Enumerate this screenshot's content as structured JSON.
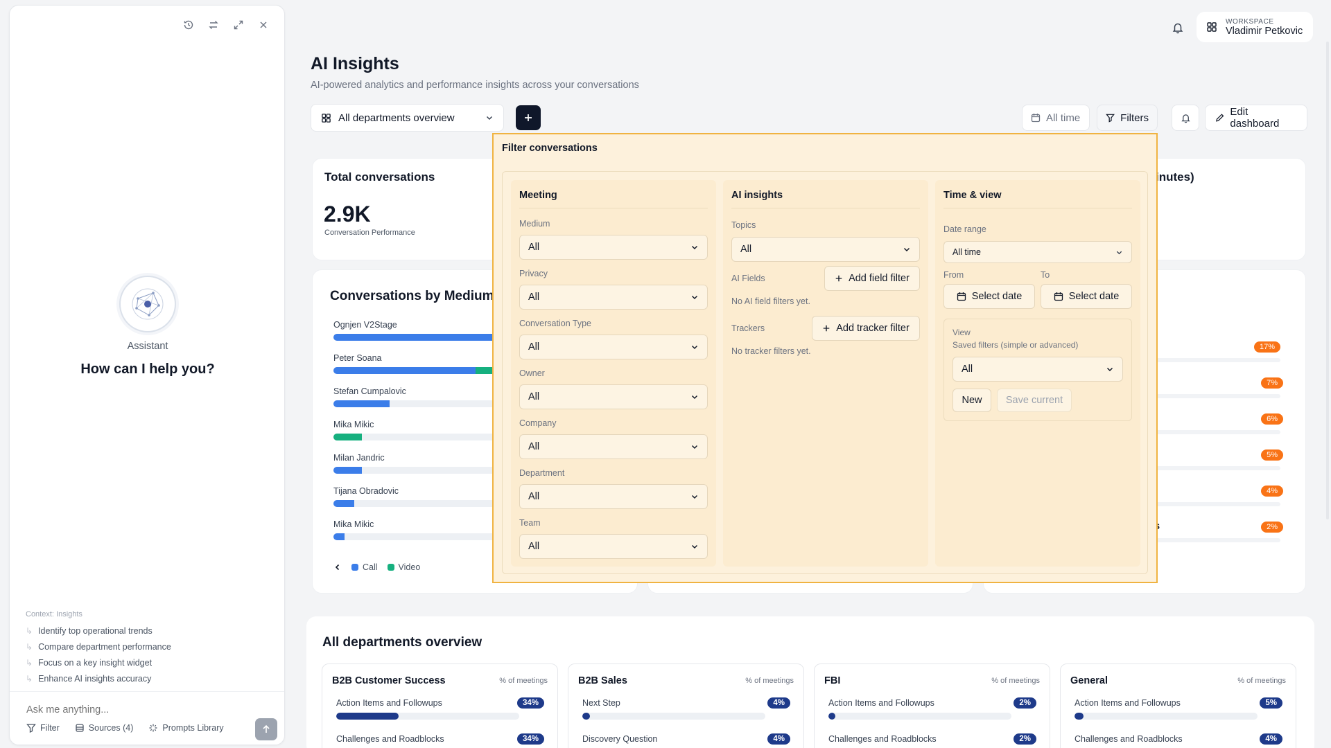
{
  "assistant": {
    "label": "Assistant",
    "heading": "How can I help you?",
    "context_label": "Context: Insights",
    "suggestions": [
      "Identify top operational trends",
      "Compare department performance",
      "Focus on a key insight widget",
      "Enhance AI insights accuracy"
    ],
    "input_placeholder": "Ask me anything...",
    "filter_label": "Filter",
    "sources_label": "Sources (4)",
    "prompts_label": "Prompts Library"
  },
  "workspace": {
    "label": "WORKSPACE",
    "user": "Vladimir Petkovic"
  },
  "page": {
    "title": "AI Insights",
    "subtitle": "AI-powered analytics and performance insights across your conversations"
  },
  "toolbar": {
    "dashboard_select": "All departments overview",
    "time_label": "All time",
    "filters_label": "Filters",
    "edit_label": "Edit dashboard"
  },
  "total_card": {
    "title": "Total conversations",
    "value": "2.9K",
    "caption": "Conversation Performance"
  },
  "right_card_title_partial": "inutes)",
  "medium_card": {
    "title": "Conversations by Medium",
    "legend": [
      "Call",
      "Video"
    ],
    "colors": {
      "call": "#3b7de9",
      "video": "#16b07f"
    },
    "rows": [
      {
        "name": "Ognjen V2Stage",
        "call": 1.0,
        "video": 0
      },
      {
        "name": "Peter Soana",
        "call": 0.76,
        "video": 0.1
      },
      {
        "name": "Stefan Cumpalovic",
        "call": 0.3,
        "video": 0
      },
      {
        "name": "Mika Mikic",
        "call": 0,
        "video": 0.15
      },
      {
        "name": "Milan Jandric",
        "call": 0.15,
        "video": 0
      },
      {
        "name": "Tijana Obradovic",
        "call": 0.11,
        "video": 0
      },
      {
        "name": "Mika Mikic",
        "call": 0.06,
        "video": 0
      }
    ]
  },
  "right_badges": [
    "17%",
    "7%",
    "6%",
    "5%",
    "4%",
    "2%"
  ],
  "right_partial_text": "s",
  "filter": {
    "title": "Filter conversations",
    "meeting": {
      "heading": "Meeting",
      "fields": [
        {
          "label": "Medium",
          "value": "All"
        },
        {
          "label": "Privacy",
          "value": "All"
        },
        {
          "label": "Conversation Type",
          "value": "All"
        },
        {
          "label": "Owner",
          "value": "All"
        },
        {
          "label": "Company",
          "value": "All"
        },
        {
          "label": "Department",
          "value": "All"
        },
        {
          "label": "Team",
          "value": "All"
        }
      ]
    },
    "ai": {
      "heading": "AI insights",
      "topics_label": "Topics",
      "topics_value": "All",
      "fields_label": "AI Fields",
      "add_field": "Add field filter",
      "no_fields": "No AI field filters yet.",
      "trackers_label": "Trackers",
      "add_tracker": "Add tracker filter",
      "no_trackers": "No tracker filters yet."
    },
    "time": {
      "heading": "Time & view",
      "date_range_label": "Date range",
      "date_range_value": "All time",
      "from_label": "From",
      "to_label": "To",
      "from_value": "Select date",
      "to_value": "Select date",
      "view_label": "View",
      "view_sub": "Saved filters (simple or advanced)",
      "view_value": "All",
      "new_label": "New",
      "save_label": "Save current"
    }
  },
  "departments": {
    "title": "All departments overview",
    "cards": [
      {
        "name": "B2B Customer Success",
        "metric": "% of meetings",
        "items": [
          {
            "label": "Action Items and Followups",
            "value": "34%",
            "fill": 0.34
          },
          {
            "label": "Challenges and Roadblocks",
            "value": "34%",
            "fill": 0.34
          }
        ]
      },
      {
        "name": "B2B Sales",
        "metric": "% of meetings",
        "items": [
          {
            "label": "Next Step",
            "value": "4%",
            "fill": 0.04
          },
          {
            "label": "Discovery Question",
            "value": "4%",
            "fill": 0.04
          }
        ]
      },
      {
        "name": "FBI",
        "metric": "% of meetings",
        "items": [
          {
            "label": "Action Items and Followups",
            "value": "2%",
            "fill": 0.02
          },
          {
            "label": "Challenges and Roadblocks",
            "value": "2%",
            "fill": 0.02
          }
        ]
      },
      {
        "name": "General",
        "metric": "% of meetings",
        "items": [
          {
            "label": "Action Items and Followups",
            "value": "5%",
            "fill": 0.05
          },
          {
            "label": "Challenges and Roadblocks",
            "value": "4%",
            "fill": 0.04
          }
        ]
      }
    ]
  }
}
